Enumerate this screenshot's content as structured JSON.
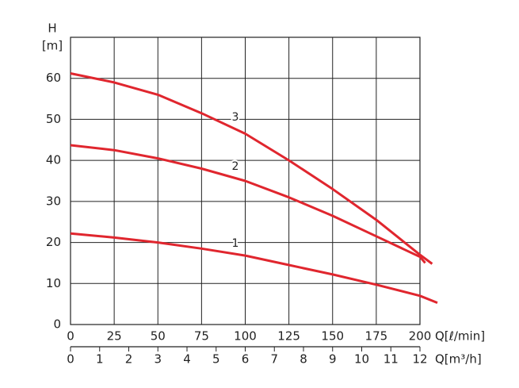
{
  "chart_data": {
    "type": "line",
    "y_label": "H",
    "y_unit": "[m]",
    "x_label": "Q[ℓ/min]",
    "x2_label": "Q[m³/h]",
    "xlim": [
      0,
      200
    ],
    "xticks": [
      0,
      25,
      50,
      75,
      100,
      125,
      150,
      175,
      200
    ],
    "x2lim": [
      0,
      12
    ],
    "x2ticks": [
      0,
      1,
      2,
      3,
      4,
      5,
      6,
      7,
      8,
      9,
      10,
      11,
      12
    ],
    "ylim": [
      0,
      70
    ],
    "yticks": [
      0,
      10,
      20,
      30,
      40,
      50,
      60
    ],
    "grid": true,
    "series": [
      {
        "name": "1",
        "color": "#e0262e",
        "x": [
          0,
          25,
          50,
          75,
          100,
          125,
          150,
          175,
          200,
          210
        ],
        "values": [
          22.2,
          21.2,
          20,
          18.5,
          16.8,
          14.5,
          12.2,
          9.7,
          7,
          5.3
        ]
      },
      {
        "name": "2",
        "color": "#e0262e",
        "x": [
          0,
          25,
          50,
          75,
          100,
          125,
          150,
          175,
          200,
          203
        ],
        "values": [
          43.7,
          42.5,
          40.5,
          38,
          35,
          31,
          26.5,
          21.5,
          16.5,
          15
        ]
      },
      {
        "name": "3",
        "color": "#e0262e",
        "x": [
          0,
          25,
          50,
          75,
          100,
          125,
          150,
          175,
          200,
          207
        ],
        "values": [
          61.2,
          59,
          56,
          51.5,
          46.5,
          40,
          33,
          25.5,
          17,
          14.8
        ]
      }
    ]
  }
}
